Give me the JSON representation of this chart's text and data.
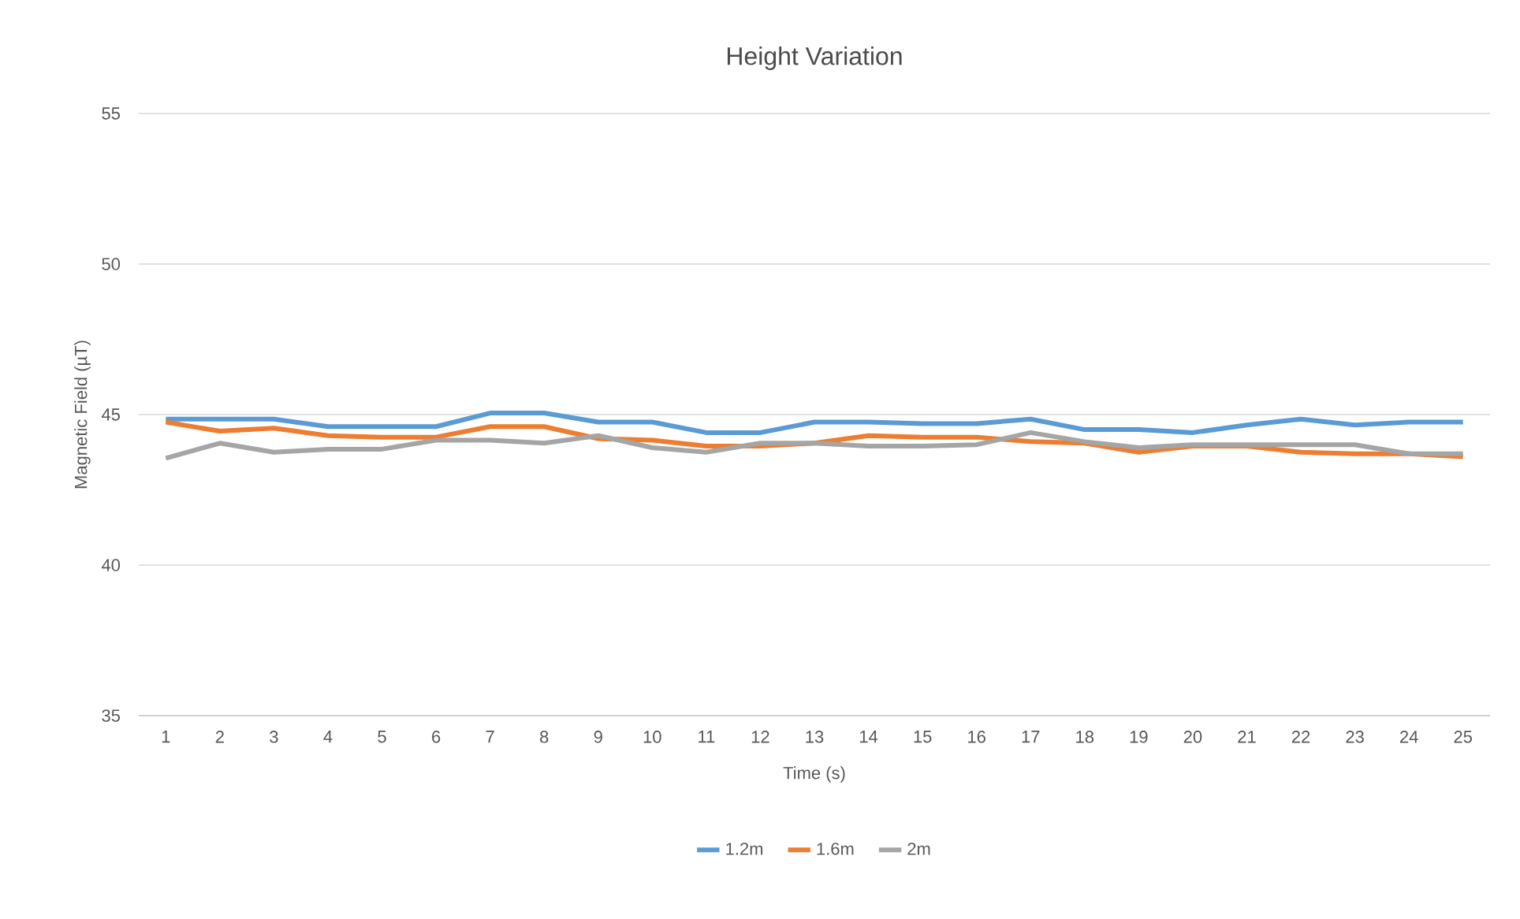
{
  "chart_data": {
    "type": "line",
    "title": "Height Variation",
    "xlabel": "Time (s)",
    "ylabel": "Magnetic Field (µT)",
    "categories": [
      "1",
      "2",
      "3",
      "4",
      "5",
      "6",
      "7",
      "8",
      "9",
      "10",
      "11",
      "12",
      "13",
      "14",
      "15",
      "16",
      "17",
      "18",
      "19",
      "20",
      "21",
      "22",
      "23",
      "24",
      "25"
    ],
    "series": [
      {
        "name": "1.2m",
        "color": "#5b9bd5",
        "values": [
          44.85,
          44.85,
          44.85,
          44.6,
          44.6,
          44.6,
          45.05,
          45.05,
          44.75,
          44.75,
          44.4,
          44.4,
          44.75,
          44.75,
          44.7,
          44.7,
          44.85,
          44.5,
          44.5,
          44.4,
          44.65,
          44.85,
          44.65,
          44.75,
          44.75
        ]
      },
      {
        "name": "1.6m",
        "color": "#ed7d31",
        "values": [
          44.75,
          44.45,
          44.55,
          44.3,
          44.25,
          44.25,
          44.6,
          44.6,
          44.2,
          44.15,
          43.95,
          43.95,
          44.05,
          44.3,
          44.25,
          44.25,
          44.1,
          44.05,
          43.75,
          43.95,
          43.95,
          43.75,
          43.7,
          43.7,
          43.6
        ]
      },
      {
        "name": "2m",
        "color": "#a5a5a5",
        "values": [
          43.55,
          44.05,
          43.75,
          43.85,
          43.85,
          44.15,
          44.15,
          44.05,
          44.3,
          43.9,
          43.75,
          44.05,
          44.05,
          43.95,
          43.95,
          44.0,
          44.4,
          44.1,
          43.9,
          44.0,
          44.0,
          44.0,
          44.0,
          43.7,
          43.7
        ]
      }
    ],
    "ylim": [
      35,
      55
    ],
    "yticks": [
      35,
      40,
      45,
      50,
      55
    ],
    "grid": "y",
    "legend": "bottom",
    "marker": "none",
    "line_style": "solid"
  }
}
